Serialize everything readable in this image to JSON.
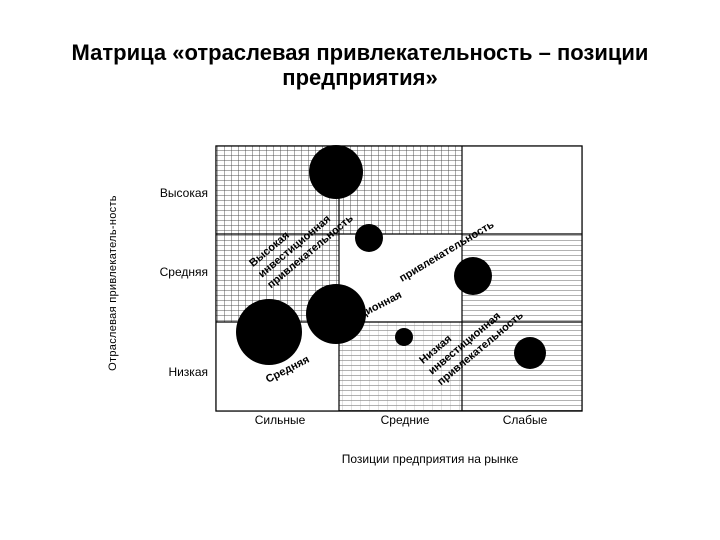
{
  "slide": {
    "title_line1": "Матрица «отраслевая привлекательность – позиции",
    "title_line2": "предприятия»"
  },
  "axes": {
    "y_label": "Отраслевая привлекатель-ность",
    "y_ticks": [
      "Высокая",
      "Средняя",
      "Низкая"
    ],
    "x_ticks": [
      "Сильные",
      "Средние",
      "Слабые"
    ],
    "x_label": "Позиции предприятия на рынке"
  },
  "bands": {
    "high_a": "Высокая",
    "high_b": "инвестиционная",
    "high_c": "привлекательность",
    "medium_a": "Средняя",
    "medium_b": "инвестиционная",
    "medium_c": "привлекательность",
    "low_a": "Низкая",
    "low_b": "инвестиционная",
    "low_c": "привлекательность"
  }
}
